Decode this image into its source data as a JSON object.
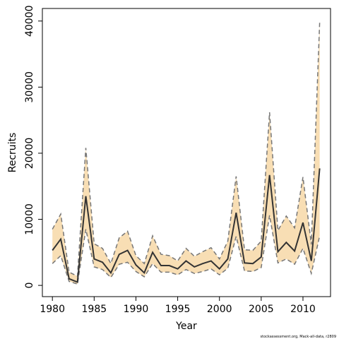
{
  "chart_data": {
    "type": "line",
    "x_label": "Year",
    "y_label": "Recruits",
    "footnote": "stockassessment.org, Mack-all-data, r2809",
    "x": [
      1980,
      1981,
      1982,
      1983,
      1984,
      1985,
      1986,
      1987,
      1988,
      1989,
      1990,
      1991,
      1992,
      1993,
      1994,
      1995,
      1996,
      1997,
      1998,
      1999,
      2000,
      2001,
      2002,
      2003,
      2004,
      2005,
      2006,
      2007,
      2008,
      2009,
      2010,
      2011,
      2012
    ],
    "values": [
      5300,
      7000,
      1000,
      500,
      13500,
      4000,
      3500,
      1900,
      4700,
      5300,
      3100,
      1900,
      5000,
      3000,
      3000,
      2500,
      3700,
      2800,
      3300,
      3700,
      2500,
      4000,
      11000,
      3400,
      3300,
      4300,
      16700,
      5100,
      6500,
      5200,
      9500,
      3700,
      17700
    ],
    "upper": [
      8500,
      10800,
      2000,
      1400,
      20800,
      6300,
      5600,
      3300,
      7200,
      8200,
      4500,
      3300,
      7500,
      4700,
      4500,
      3700,
      5600,
      4400,
      5100,
      5700,
      4000,
      6700,
      16500,
      5400,
      5300,
      6700,
      26200,
      8300,
      10500,
      8700,
      16400,
      6200,
      39800
    ],
    "lower": [
      3300,
      4500,
      600,
      200,
      8500,
      2800,
      2400,
      1200,
      3200,
      3500,
      2100,
      1300,
      3300,
      2000,
      2000,
      1600,
      2400,
      1800,
      2100,
      2500,
      1600,
      2600,
      7400,
      2200,
      2100,
      2700,
      10600,
      3400,
      4000,
      3200,
      5600,
      1800,
      7500
    ],
    "color": "#333333",
    "band_color": "#f8deb4",
    "band_line_color": "#777777",
    "xlim": [
      1978.8,
      2013.3
    ],
    "ylim": [
      -1700,
      41900
    ],
    "xticks": [
      1980,
      1985,
      1990,
      1995,
      2000,
      2005,
      2010
    ],
    "yticks": [
      0,
      10000,
      20000,
      30000,
      40000
    ]
  }
}
